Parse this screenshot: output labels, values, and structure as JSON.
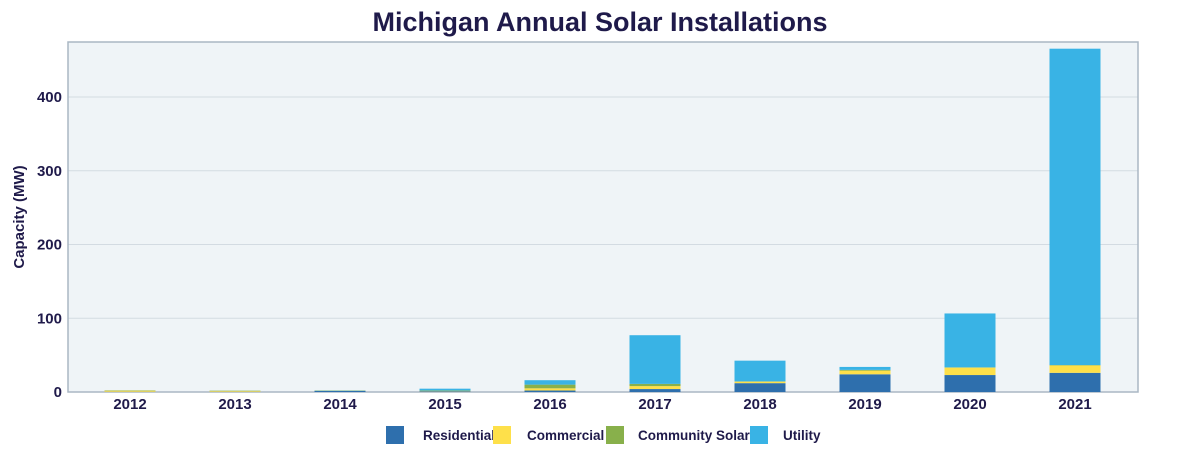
{
  "chart_data": {
    "type": "bar",
    "stacked": true,
    "title": "Michigan Annual Solar Installations",
    "xlabel": "",
    "ylabel": "Capacity (MW)",
    "ylim": [
      0,
      475
    ],
    "yticks": [
      0,
      100,
      200,
      300,
      400
    ],
    "grid": true,
    "legend_position": "bottom",
    "categories": [
      "2012",
      "2013",
      "2014",
      "2015",
      "2016",
      "2017",
      "2018",
      "2019",
      "2020",
      "2021"
    ],
    "series": [
      {
        "name": "Residential",
        "color": "#2e6fad",
        "values": [
          0.3,
          0.3,
          1.5,
          1,
          2,
          4,
          12,
          24,
          23,
          26
        ]
      },
      {
        "name": "Commercial",
        "color": "#fee04a",
        "values": [
          1.5,
          1,
          0.3,
          0.5,
          3,
          4,
          2,
          5,
          10,
          10
        ]
      },
      {
        "name": "Community Solar",
        "color": "#88b04b",
        "values": [
          0.5,
          0.5,
          0.2,
          0.5,
          5,
          3,
          0.5,
          1,
          0.5,
          0.5
        ]
      },
      {
        "name": "Utility",
        "color": "#39b3e5",
        "values": [
          0,
          0,
          0.3,
          2.5,
          6,
          66,
          28,
          4,
          73,
          429
        ]
      }
    ],
    "colors": {
      "plot_bg": "#eff4f7",
      "grid": "#d3dbe2",
      "axis": "#aab7c4",
      "text": "#1f1a4a"
    }
  }
}
